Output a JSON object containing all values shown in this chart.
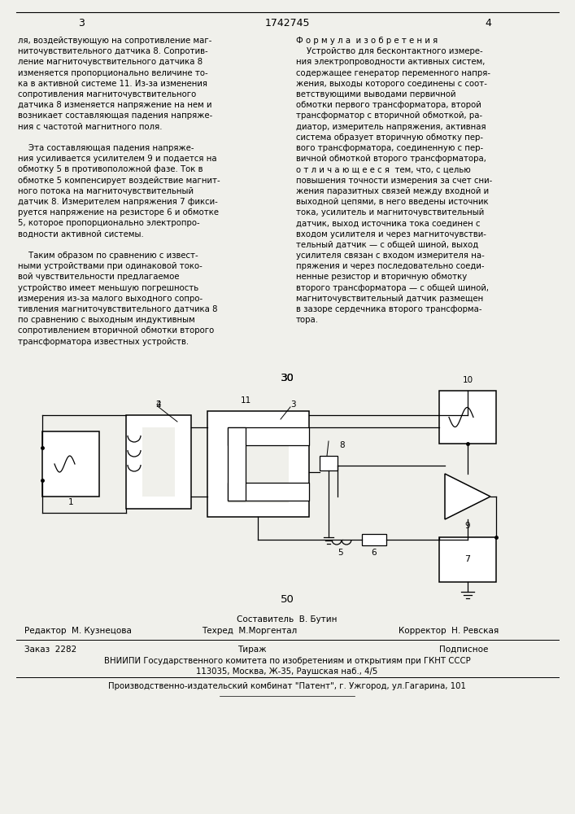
{
  "bg_color": "#f0f0eb",
  "page_number_left": "3",
  "page_number_center": "1742745",
  "page_number_right": "4",
  "col_left_text": [
    "ля, воздействующую на сопротивление маг-",
    "ниточувствительного датчика 8. Сопротив-",
    "ление магниточувствительного датчика 8",
    "изменяется пропорционально величине то-",
    "ка в активной системе 11. Из-за изменения",
    "сопротивления магниточувствительного",
    "датчика 8 изменяется напряжение на нем и",
    "возникает составляющая падения напряже-",
    "ния с частотой магнитного поля.",
    "",
    "    Эта составляющая падения напряже-",
    "ния усиливается усилителем 9 и подается на",
    "обмотку 5 в противоположной фазе. Ток в",
    "обмотке 5 компенсирует воздействие магнит-",
    "ного потока на магниточувствительный",
    "датчик 8. Измерителем напряжения 7 фикси-",
    "руется напряжение на резисторе 6 и обмотке",
    "5, которое пропорционально электропро-",
    "водности активной системы.",
    "",
    "    Таким образом по сравнению с извест-",
    "ными устройствами при одинаковой токо-",
    "вой чувствительности предлагаемое",
    "устройство имеет меньшую погрешность",
    "измерения из-за малого выходного сопро-",
    "тивления магниточувствительного датчика 8",
    "по сравнению с выходным индуктивным",
    "сопротивлением вторичной обмотки второго",
    "трансформатора известных устройств."
  ],
  "col_right_text": [
    "Ф о р м у л а  и з о б р е т е н и я",
    "    Устройство для бесконтактного измере-",
    "ния электропроводности активных систем,",
    "содержащее генератор переменного напря-",
    "жения, выходы которого соединены с соот-",
    "ветствующими выводами первичной",
    "обмотки первого трансформатора, второй",
    "трансформатор с вторичной обмоткой, ра-",
    "диатор, измеритель напряжения, активная",
    "система образует вторичную обмотку пер-",
    "вого трансформатора, соединенную с пер-",
    "вичной обмоткой второго трансформатора,",
    "о т л и ч а ю щ е е с я  тем, что, с целью",
    "повышения точности измерения за счет сни-",
    "жения паразитных связей между входной и",
    "выходной цепями, в него введены источник",
    "тока, усилитель и магниточувствительный",
    "датчик, выход источника тока соединен с",
    "входом усилителя и через магниточувстви-",
    "тельный датчик — с общей шиной, выход",
    "усилителя связан с входом измерителя на-",
    "пряжения и через последовательно соеди-",
    "ненные резистор и вторичную обмотку",
    "второго трансформатора — с общей шиной,",
    "магниточувствительный датчик размещен",
    "в зазоре сердечника второго трансформа-",
    "тора."
  ],
  "fig_number": "30",
  "bottom_number": "50",
  "composer_line": "Составитель  В. Бутин",
  "editor_line": "Редактор  М. Кузнецова",
  "techred_line": "Техред  М.Моргентал",
  "corrector_line": "Корректор  Н. Ревская",
  "order_line": "Заказ  2282",
  "tirazh_line": "Тираж",
  "podpisnoe_line": "Подписное",
  "vniip_line1": "ВНИИПИ Государственного комитета по изобретениям и открытиям при ГКНТ СССР",
  "vniip_line2": "113035, Москва, Ж-35, Раушская наб., 4/5",
  "publisher_line": "Производственно-издательский комбинат \"Патент\", г. Ужгород, ул.Гагарина, 101"
}
